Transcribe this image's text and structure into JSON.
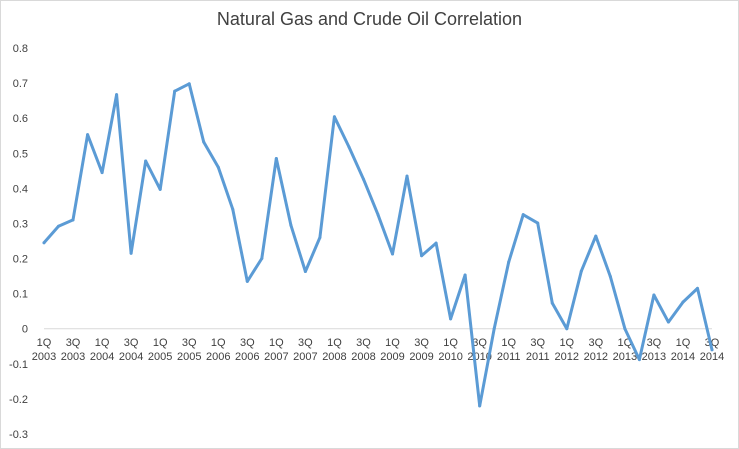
{
  "chart_data": {
    "type": "line",
    "title": "Natural Gas and Crude Oil Correlation",
    "xlabel": "",
    "ylabel": "",
    "ylim": [
      -0.3,
      0.8
    ],
    "yticks": [
      "0.8",
      "0.7",
      "0.6",
      "0.5",
      "0.4",
      "0.3",
      "0.2",
      "0.1",
      "0",
      "-0.1",
      "-0.2",
      "-0.3"
    ],
    "x_labels": [
      {
        "q": "1Q",
        "year": "2003"
      },
      {
        "q": "3Q",
        "year": "2003"
      },
      {
        "q": "1Q",
        "year": "2004"
      },
      {
        "q": "3Q",
        "year": "2004"
      },
      {
        "q": "1Q",
        "year": "2005"
      },
      {
        "q": "3Q",
        "year": "2005"
      },
      {
        "q": "1Q",
        "year": "2006"
      },
      {
        "q": "3Q",
        "year": "2006"
      },
      {
        "q": "1Q",
        "year": "2007"
      },
      {
        "q": "3Q",
        "year": "2007"
      },
      {
        "q": "1Q",
        "year": "2008"
      },
      {
        "q": "3Q",
        "year": "2008"
      },
      {
        "q": "1Q",
        "year": "2009"
      },
      {
        "q": "3Q",
        "year": "2009"
      },
      {
        "q": "1Q",
        "year": "2010"
      },
      {
        "q": "3Q",
        "year": "2010"
      },
      {
        "q": "1Q",
        "year": "2011"
      },
      {
        "q": "3Q",
        "year": "2011"
      },
      {
        "q": "1Q",
        "year": "2012"
      },
      {
        "q": "3Q",
        "year": "2012"
      },
      {
        "q": "1Q",
        "year": "2013"
      },
      {
        "q": "3Q",
        "year": "2013"
      },
      {
        "q": "1Q",
        "year": "2014"
      },
      {
        "q": "3Q",
        "year": "2014"
      }
    ],
    "series": [
      {
        "color": "#5b9bd5",
        "values": [
          0.245,
          0.292,
          0.31,
          0.553,
          0.445,
          0.667,
          0.215,
          0.478,
          0.397,
          0.677,
          0.698,
          0.532,
          0.46,
          0.34,
          0.135,
          0.2,
          0.485,
          0.295,
          0.163,
          0.26,
          0.604,
          0.518,
          0.426,
          0.325,
          0.213,
          0.435,
          0.208,
          0.244,
          0.028,
          0.153,
          -0.22,
          0.0,
          0.19,
          0.325,
          0.301,
          0.073,
          0.0,
          0.164,
          0.264,
          0.149,
          0.0,
          -0.088,
          0.096,
          0.019,
          0.076,
          0.115,
          -0.06
        ]
      }
    ],
    "grid": false,
    "legend": "none"
  }
}
